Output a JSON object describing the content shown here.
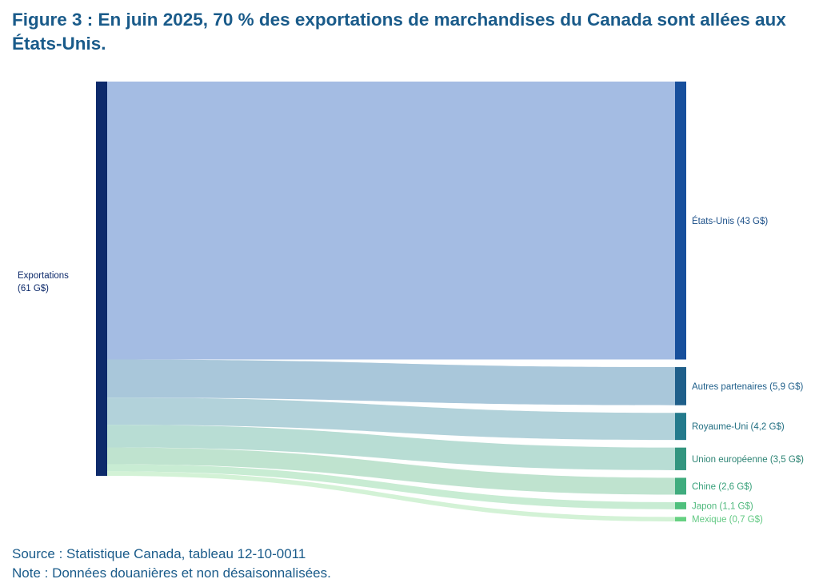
{
  "title": "Figure 3 : En juin 2025, 70 % des exportations de marchandises du Canada sont allées aux États-Unis.",
  "footer": {
    "source": "Source : Statistique Canada, tableau 12-10-0011",
    "note": "Note : Données douanières et non désaisonnalisées."
  },
  "chart_data": {
    "type": "sankey",
    "unit": "G$",
    "source_node": {
      "label_line1": "Exportations",
      "label_line2": "(61 G$)",
      "value": 61,
      "color": "#0d2a6b"
    },
    "targets": [
      {
        "name": "États-Unis",
        "label": "États-Unis (43 G$)",
        "value": 43,
        "node_color": "#174f9c",
        "flow_color": "#a4bce3",
        "label_color": "#1b4f88"
      },
      {
        "name": "Autres partenaires",
        "label": "Autres partenaires (5,9 G$)",
        "value": 5.9,
        "node_color": "#1f5f8a",
        "flow_color": "#a9c7da",
        "label_color": "#1f5f8a"
      },
      {
        "name": "Royaume-Uni",
        "label": "Royaume-Uni (4,2 G$)",
        "value": 4.2,
        "node_color": "#247a8c",
        "flow_color": "#b2d2da",
        "label_color": "#226f82"
      },
      {
        "name": "Union européenne",
        "label": "Union européenne (3,5 G$)",
        "value": 3.5,
        "node_color": "#33957f",
        "flow_color": "#b8ddd4",
        "label_color": "#2d8474"
      },
      {
        "name": "Chine",
        "label": "Chine (2,6 G$)",
        "value": 2.6,
        "node_color": "#40ac7e",
        "flow_color": "#bfe3cf",
        "label_color": "#37a07a"
      },
      {
        "name": "Japon",
        "label": "Japon (1,1 G$)",
        "value": 1.1,
        "node_color": "#4fc07d",
        "flow_color": "#c8ecd3",
        "label_color": "#4fb97d"
      },
      {
        "name": "Mexique",
        "label": "Mexique (0,7 G$)",
        "value": 0.7,
        "node_color": "#66d182",
        "flow_color": "#d3f2d6",
        "label_color": "#62c983"
      }
    ]
  }
}
